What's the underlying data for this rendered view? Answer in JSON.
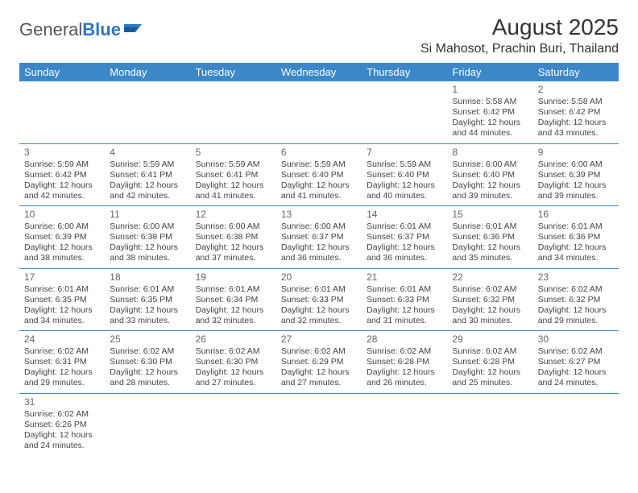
{
  "logo": {
    "text1": "General",
    "text2": "Blue"
  },
  "header": {
    "month_title": "August 2025",
    "location": "Si Mahosot, Prachin Buri, Thailand"
  },
  "colors": {
    "header_bg": "#3b87c8",
    "header_text": "#ffffff",
    "rule": "#3b87c8",
    "body_text": "#444444",
    "logo_blue": "#2b78c2"
  },
  "typography": {
    "month_title_fontsize": 28,
    "location_fontsize": 16,
    "dayheader_fontsize": 13,
    "cell_fontsize": 10.5,
    "daynum_fontsize": 12
  },
  "day_headers": [
    "Sunday",
    "Monday",
    "Tuesday",
    "Wednesday",
    "Thursday",
    "Friday",
    "Saturday"
  ],
  "weeks": [
    [
      null,
      null,
      null,
      null,
      null,
      {
        "day": "1",
        "sunrise": "Sunrise: 5:58 AM",
        "sunset": "Sunset: 6:42 PM",
        "daylight1": "Daylight: 12 hours",
        "daylight2": "and 44 minutes."
      },
      {
        "day": "2",
        "sunrise": "Sunrise: 5:58 AM",
        "sunset": "Sunset: 6:42 PM",
        "daylight1": "Daylight: 12 hours",
        "daylight2": "and 43 minutes."
      }
    ],
    [
      {
        "day": "3",
        "sunrise": "Sunrise: 5:59 AM",
        "sunset": "Sunset: 6:42 PM",
        "daylight1": "Daylight: 12 hours",
        "daylight2": "and 42 minutes."
      },
      {
        "day": "4",
        "sunrise": "Sunrise: 5:59 AM",
        "sunset": "Sunset: 6:41 PM",
        "daylight1": "Daylight: 12 hours",
        "daylight2": "and 42 minutes."
      },
      {
        "day": "5",
        "sunrise": "Sunrise: 5:59 AM",
        "sunset": "Sunset: 6:41 PM",
        "daylight1": "Daylight: 12 hours",
        "daylight2": "and 41 minutes."
      },
      {
        "day": "6",
        "sunrise": "Sunrise: 5:59 AM",
        "sunset": "Sunset: 6:40 PM",
        "daylight1": "Daylight: 12 hours",
        "daylight2": "and 41 minutes."
      },
      {
        "day": "7",
        "sunrise": "Sunrise: 5:59 AM",
        "sunset": "Sunset: 6:40 PM",
        "daylight1": "Daylight: 12 hours",
        "daylight2": "and 40 minutes."
      },
      {
        "day": "8",
        "sunrise": "Sunrise: 6:00 AM",
        "sunset": "Sunset: 6:40 PM",
        "daylight1": "Daylight: 12 hours",
        "daylight2": "and 39 minutes."
      },
      {
        "day": "9",
        "sunrise": "Sunrise: 6:00 AM",
        "sunset": "Sunset: 6:39 PM",
        "daylight1": "Daylight: 12 hours",
        "daylight2": "and 39 minutes."
      }
    ],
    [
      {
        "day": "10",
        "sunrise": "Sunrise: 6:00 AM",
        "sunset": "Sunset: 6:39 PM",
        "daylight1": "Daylight: 12 hours",
        "daylight2": "and 38 minutes."
      },
      {
        "day": "11",
        "sunrise": "Sunrise: 6:00 AM",
        "sunset": "Sunset: 6:38 PM",
        "daylight1": "Daylight: 12 hours",
        "daylight2": "and 38 minutes."
      },
      {
        "day": "12",
        "sunrise": "Sunrise: 6:00 AM",
        "sunset": "Sunset: 6:38 PM",
        "daylight1": "Daylight: 12 hours",
        "daylight2": "and 37 minutes."
      },
      {
        "day": "13",
        "sunrise": "Sunrise: 6:00 AM",
        "sunset": "Sunset: 6:37 PM",
        "daylight1": "Daylight: 12 hours",
        "daylight2": "and 36 minutes."
      },
      {
        "day": "14",
        "sunrise": "Sunrise: 6:01 AM",
        "sunset": "Sunset: 6:37 PM",
        "daylight1": "Daylight: 12 hours",
        "daylight2": "and 36 minutes."
      },
      {
        "day": "15",
        "sunrise": "Sunrise: 6:01 AM",
        "sunset": "Sunset: 6:36 PM",
        "daylight1": "Daylight: 12 hours",
        "daylight2": "and 35 minutes."
      },
      {
        "day": "16",
        "sunrise": "Sunrise: 6:01 AM",
        "sunset": "Sunset: 6:36 PM",
        "daylight1": "Daylight: 12 hours",
        "daylight2": "and 34 minutes."
      }
    ],
    [
      {
        "day": "17",
        "sunrise": "Sunrise: 6:01 AM",
        "sunset": "Sunset: 6:35 PM",
        "daylight1": "Daylight: 12 hours",
        "daylight2": "and 34 minutes."
      },
      {
        "day": "18",
        "sunrise": "Sunrise: 6:01 AM",
        "sunset": "Sunset: 6:35 PM",
        "daylight1": "Daylight: 12 hours",
        "daylight2": "and 33 minutes."
      },
      {
        "day": "19",
        "sunrise": "Sunrise: 6:01 AM",
        "sunset": "Sunset: 6:34 PM",
        "daylight1": "Daylight: 12 hours",
        "daylight2": "and 32 minutes."
      },
      {
        "day": "20",
        "sunrise": "Sunrise: 6:01 AM",
        "sunset": "Sunset: 6:33 PM",
        "daylight1": "Daylight: 12 hours",
        "daylight2": "and 32 minutes."
      },
      {
        "day": "21",
        "sunrise": "Sunrise: 6:01 AM",
        "sunset": "Sunset: 6:33 PM",
        "daylight1": "Daylight: 12 hours",
        "daylight2": "and 31 minutes."
      },
      {
        "day": "22",
        "sunrise": "Sunrise: 6:02 AM",
        "sunset": "Sunset: 6:32 PM",
        "daylight1": "Daylight: 12 hours",
        "daylight2": "and 30 minutes."
      },
      {
        "day": "23",
        "sunrise": "Sunrise: 6:02 AM",
        "sunset": "Sunset: 6:32 PM",
        "daylight1": "Daylight: 12 hours",
        "daylight2": "and 29 minutes."
      }
    ],
    [
      {
        "day": "24",
        "sunrise": "Sunrise: 6:02 AM",
        "sunset": "Sunset: 6:31 PM",
        "daylight1": "Daylight: 12 hours",
        "daylight2": "and 29 minutes."
      },
      {
        "day": "25",
        "sunrise": "Sunrise: 6:02 AM",
        "sunset": "Sunset: 6:30 PM",
        "daylight1": "Daylight: 12 hours",
        "daylight2": "and 28 minutes."
      },
      {
        "day": "26",
        "sunrise": "Sunrise: 6:02 AM",
        "sunset": "Sunset: 6:30 PM",
        "daylight1": "Daylight: 12 hours",
        "daylight2": "and 27 minutes."
      },
      {
        "day": "27",
        "sunrise": "Sunrise: 6:02 AM",
        "sunset": "Sunset: 6:29 PM",
        "daylight1": "Daylight: 12 hours",
        "daylight2": "and 27 minutes."
      },
      {
        "day": "28",
        "sunrise": "Sunrise: 6:02 AM",
        "sunset": "Sunset: 6:28 PM",
        "daylight1": "Daylight: 12 hours",
        "daylight2": "and 26 minutes."
      },
      {
        "day": "29",
        "sunrise": "Sunrise: 6:02 AM",
        "sunset": "Sunset: 6:28 PM",
        "daylight1": "Daylight: 12 hours",
        "daylight2": "and 25 minutes."
      },
      {
        "day": "30",
        "sunrise": "Sunrise: 6:02 AM",
        "sunset": "Sunset: 6:27 PM",
        "daylight1": "Daylight: 12 hours",
        "daylight2": "and 24 minutes."
      }
    ],
    [
      {
        "day": "31",
        "sunrise": "Sunrise: 6:02 AM",
        "sunset": "Sunset: 6:26 PM",
        "daylight1": "Daylight: 12 hours",
        "daylight2": "and 24 minutes."
      },
      null,
      null,
      null,
      null,
      null,
      null
    ]
  ]
}
